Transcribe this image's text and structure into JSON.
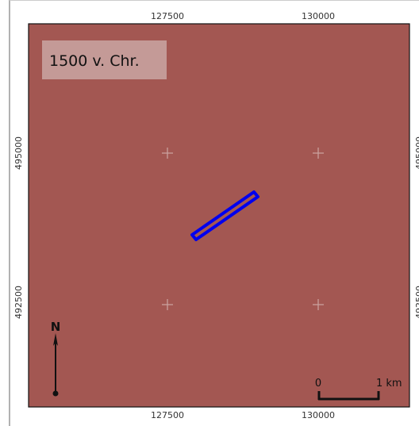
{
  "map": {
    "period_label": "1500 v. Chr.",
    "background_color": "#a35752",
    "label_box_color": "#c49a97",
    "feature_color": "#0000ee",
    "grid_cross_color": "#c9a09d",
    "x_ticks": [
      "127500",
      "130000"
    ],
    "y_ticks": [
      "495000",
      "492500"
    ],
    "north_arrow": {
      "letter": "N",
      "icon": "north-arrow-icon"
    },
    "scale_bar": {
      "start_label": "0",
      "end_label": "1 km"
    }
  }
}
